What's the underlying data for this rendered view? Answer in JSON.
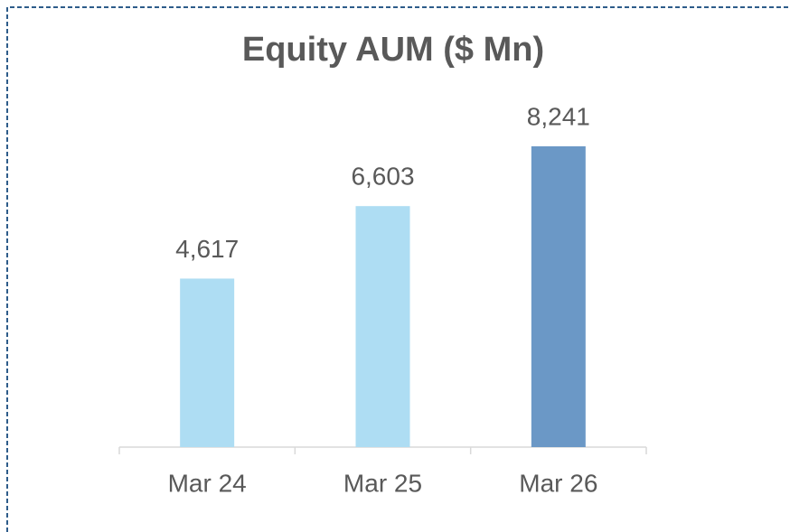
{
  "chart_data": {
    "type": "bar",
    "title": "Equity AUM ($ Mn)",
    "categories": [
      "Mar 24",
      "Mar 25",
      "Mar 26"
    ],
    "values": [
      4617,
      6603,
      8241
    ],
    "value_labels": [
      "4,617",
      "6,603",
      "8,241"
    ],
    "colors": [
      "#aeddf3",
      "#aeddf3",
      "#6b98c6"
    ]
  }
}
